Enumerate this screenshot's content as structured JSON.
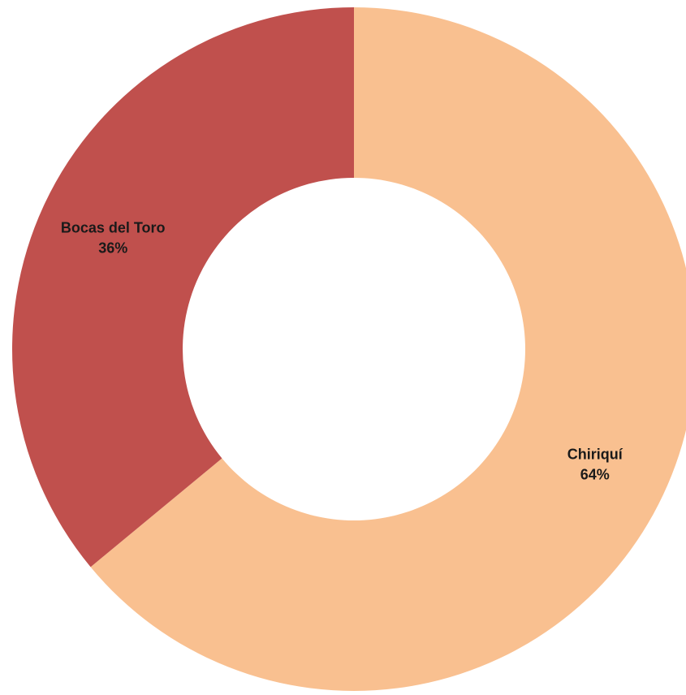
{
  "chart_data": {
    "type": "pie",
    "variant": "donut",
    "title": "",
    "legend": "none",
    "slices": [
      {
        "label": "Chiriquí",
        "value": 64,
        "display": "64%",
        "color": "#F9C090"
      },
      {
        "label": "Bocas del Toro",
        "value": 36,
        "display": "36%",
        "color": "#C0504D"
      }
    ]
  }
}
